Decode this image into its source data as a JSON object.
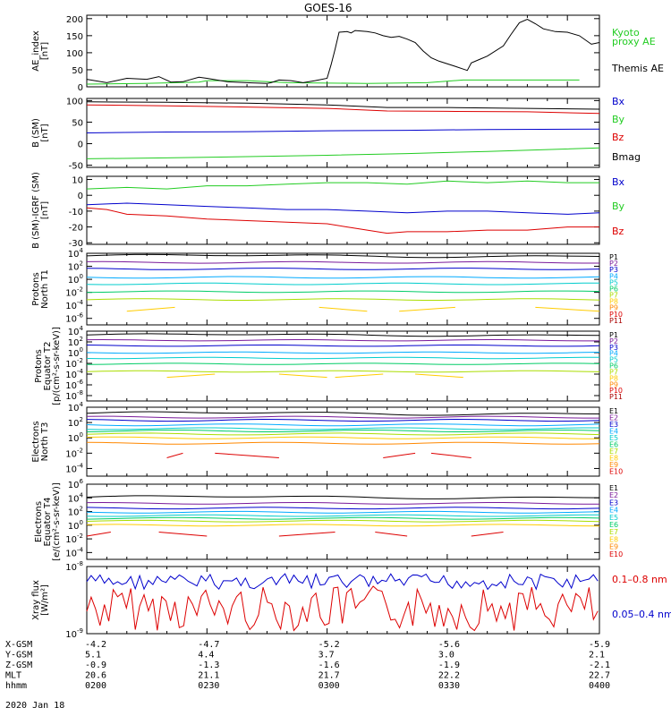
{
  "title": "GOES-16",
  "date": "2020 Jan 18",
  "colors": {
    "black": "#000000",
    "red": "#dd0000",
    "green": "#22cc22",
    "blue": "#0000cc"
  },
  "chart_data": [
    {
      "type": "line",
      "id": "ae",
      "ylabel": [
        "AE_index",
        "[nT]"
      ],
      "ylim": [
        0,
        210
      ],
      "yticks": [
        0,
        50,
        100,
        150,
        200
      ],
      "legend": [
        {
          "text": "Kyoto",
          "color": "#22cc22"
        },
        {
          "text": "proxy AE",
          "color": "#22cc22"
        },
        {
          "text": "Themis AE",
          "color": "#000000"
        }
      ],
      "series": [
        {
          "name": "Kyoto proxy AE",
          "color": "#22cc22",
          "values": [
            [
              0,
              8
            ],
            [
              14,
              10
            ],
            [
              28,
              14
            ],
            [
              30,
              18
            ],
            [
              40,
              18
            ],
            [
              50,
              12
            ],
            [
              70,
              10
            ],
            [
              85,
              12
            ],
            [
              94,
              20
            ],
            [
              112,
              20
            ],
            [
              120,
              20
            ],
            [
              123,
              20
            ]
          ]
        },
        {
          "name": "Themis AE",
          "color": "#000000",
          "values": [
            [
              0,
              22
            ],
            [
              5,
              12
            ],
            [
              10,
              25
            ],
            [
              15,
              22
            ],
            [
              18,
              30
            ],
            [
              21,
              14
            ],
            [
              24,
              15
            ],
            [
              28,
              28
            ],
            [
              30,
              25
            ],
            [
              35,
              15
            ],
            [
              40,
              12
            ],
            [
              45,
              10
            ],
            [
              46,
              12
            ],
            [
              48,
              20
            ],
            [
              51,
              18
            ],
            [
              54,
              12
            ],
            [
              57,
              18
            ],
            [
              60,
              25
            ],
            [
              61,
              65
            ],
            [
              62,
              110
            ],
            [
              63,
              160
            ],
            [
              65,
              162
            ],
            [
              66,
              158
            ],
            [
              67,
              165
            ],
            [
              70,
              162
            ],
            [
              72,
              158
            ],
            [
              74,
              150
            ],
            [
              76,
              145
            ],
            [
              78,
              148
            ],
            [
              80,
              140
            ],
            [
              82,
              130
            ],
            [
              84,
              105
            ],
            [
              86,
              85
            ],
            [
              88,
              75
            ],
            [
              92,
              60
            ],
            [
              94,
              52
            ],
            [
              95,
              48
            ],
            [
              96,
              70
            ],
            [
              98,
              80
            ],
            [
              100,
              90
            ],
            [
              104,
              120
            ],
            [
              106,
              155
            ],
            [
              108,
              188
            ],
            [
              110,
              198
            ],
            [
              112,
              185
            ],
            [
              114,
              170
            ],
            [
              117,
              162
            ],
            [
              120,
              160
            ],
            [
              123,
              150
            ],
            [
              126,
              125
            ],
            [
              128,
              130
            ]
          ]
        }
      ]
    },
    {
      "type": "line",
      "id": "bsm",
      "ylabel": [
        "B (SM)",
        "[nT]"
      ],
      "ylim": [
        -55,
        105
      ],
      "yticks": [
        -50,
        0,
        50,
        100
      ],
      "legend": [
        {
          "text": "Bx",
          "color": "#0000cc"
        },
        {
          "text": "By",
          "color": "#22cc22"
        },
        {
          "text": "Bz",
          "color": "#dd0000"
        },
        {
          "text": "Bmag",
          "color": "#000000"
        }
      ],
      "series": [
        {
          "name": "Bmag",
          "color": "#000000",
          "values": [
            [
              0,
              97
            ],
            [
              20,
              96
            ],
            [
              40,
              94
            ],
            [
              60,
              90
            ],
            [
              75,
              84
            ],
            [
              90,
              84
            ],
            [
              110,
              82
            ],
            [
              128,
              80
            ]
          ]
        },
        {
          "name": "Bz",
          "color": "#dd0000",
          "values": [
            [
              0,
              90
            ],
            [
              20,
              88
            ],
            [
              40,
              85
            ],
            [
              60,
              82
            ],
            [
              75,
              76
            ],
            [
              90,
              75
            ],
            [
              110,
              74
            ],
            [
              128,
              70
            ]
          ]
        },
        {
          "name": "Bx",
          "color": "#0000cc",
          "values": [
            [
              0,
              25
            ],
            [
              20,
              27
            ],
            [
              40,
              28
            ],
            [
              60,
              30
            ],
            [
              80,
              31
            ],
            [
              100,
              33
            ],
            [
              128,
              34
            ]
          ]
        },
        {
          "name": "By",
          "color": "#22cc22",
          "values": [
            [
              0,
              -35
            ],
            [
              20,
              -33
            ],
            [
              40,
              -30
            ],
            [
              60,
              -27
            ],
            [
              80,
              -23
            ],
            [
              100,
              -18
            ],
            [
              128,
              -10
            ]
          ]
        }
      ]
    },
    {
      "type": "line",
      "id": "bigrf",
      "ylabel": [
        "B (SM)-IGRF (SM)",
        "[nT]"
      ],
      "ylim": [
        -31,
        12
      ],
      "yticks": [
        -30,
        -20,
        -10,
        0,
        10
      ],
      "legend": [
        {
          "text": "Bx",
          "color": "#0000cc"
        },
        {
          "text": "By",
          "color": "#22cc22"
        },
        {
          "text": "Bz",
          "color": "#dd0000"
        }
      ],
      "series": [
        {
          "name": "By",
          "color": "#22cc22",
          "values": [
            [
              0,
              4
            ],
            [
              10,
              5
            ],
            [
              20,
              4
            ],
            [
              30,
              6
            ],
            [
              40,
              6
            ],
            [
              50,
              7
            ],
            [
              60,
              8
            ],
            [
              70,
              8
            ],
            [
              80,
              7
            ],
            [
              90,
              9
            ],
            [
              100,
              8
            ],
            [
              110,
              9
            ],
            [
              120,
              8
            ],
            [
              128,
              8
            ]
          ]
        },
        {
          "name": "Bx",
          "color": "#0000cc",
          "values": [
            [
              0,
              -6
            ],
            [
              10,
              -5
            ],
            [
              20,
              -6
            ],
            [
              30,
              -7
            ],
            [
              40,
              -8
            ],
            [
              50,
              -9
            ],
            [
              60,
              -9
            ],
            [
              70,
              -10
            ],
            [
              80,
              -11
            ],
            [
              90,
              -10
            ],
            [
              100,
              -10
            ],
            [
              110,
              -11
            ],
            [
              120,
              -12
            ],
            [
              128,
              -11
            ]
          ]
        },
        {
          "name": "Bz",
          "color": "#dd0000",
          "values": [
            [
              0,
              -8
            ],
            [
              5,
              -9
            ],
            [
              10,
              -12
            ],
            [
              20,
              -13
            ],
            [
              30,
              -15
            ],
            [
              40,
              -16
            ],
            [
              50,
              -17
            ],
            [
              60,
              -18
            ],
            [
              65,
              -20
            ],
            [
              70,
              -22
            ],
            [
              75,
              -24
            ],
            [
              80,
              -23
            ],
            [
              90,
              -23
            ],
            [
              100,
              -22
            ],
            [
              110,
              -22
            ],
            [
              120,
              -20
            ],
            [
              128,
              -20
            ]
          ]
        }
      ]
    },
    {
      "type": "line",
      "id": "pnt1",
      "yscale": "log",
      "ylabel": [
        "Protons",
        "North T1"
      ],
      "ylim": [
        -7,
        4
      ],
      "yticks": [
        -6,
        -4,
        -2,
        0,
        2,
        4
      ],
      "legend": [
        {
          "text": "P1",
          "color": "#000000"
        },
        {
          "text": "P2",
          "color": "#7a1a9a"
        },
        {
          "text": "P3",
          "color": "#0000cc"
        },
        {
          "text": "P4",
          "color": "#00aaff"
        },
        {
          "text": "P5",
          "color": "#00cccc"
        },
        {
          "text": "P6",
          "color": "#00cc66"
        },
        {
          "text": "P7",
          "color": "#aadd00"
        },
        {
          "text": "P8",
          "color": "#ffcc00"
        },
        {
          "text": "P9",
          "color": "#ff8800"
        },
        {
          "text": "P10",
          "color": "#dd0000"
        },
        {
          "text": "P11",
          "color": "#aa0000"
        }
      ],
      "levels": [
        3.6,
        2.6,
        1.6,
        0.3,
        -0.7,
        -1.9,
        -3.1
      ],
      "sparse": [
        {
          "color": "#ffcc00",
          "y": -4.6,
          "segs": [
            [
              10,
              22
            ],
            [
              58,
              70
            ],
            [
              78,
              92
            ],
            [
              112,
              128
            ]
          ]
        }
      ]
    },
    {
      "type": "line",
      "id": "peqt2",
      "yscale": "log",
      "ylabel": [
        "Protons",
        "Equator T2",
        "[p/(cm²-s-sr-keV)]"
      ],
      "ylim": [
        -9,
        4
      ],
      "yticks": [
        -8,
        -6,
        -4,
        -2,
        0,
        2,
        4
      ],
      "legend": [
        {
          "text": "P1",
          "color": "#000000"
        },
        {
          "text": "P2",
          "color": "#7a1a9a"
        },
        {
          "text": "P3",
          "color": "#0000cc"
        },
        {
          "text": "P4",
          "color": "#00aaff"
        },
        {
          "text": "P5",
          "color": "#00cccc"
        },
        {
          "text": "P6",
          "color": "#00cc66"
        },
        {
          "text": "P7",
          "color": "#aadd00"
        },
        {
          "text": "P8",
          "color": "#ffcc00"
        },
        {
          "text": "P9",
          "color": "#ff8800"
        },
        {
          "text": "P10",
          "color": "#dd0000"
        },
        {
          "text": "P11",
          "color": "#aa0000"
        }
      ],
      "levels": [
        3.3,
        2.3,
        1.3,
        0.0,
        -1.0,
        -2.1,
        -3.5
      ],
      "sparse": [
        {
          "color": "#ffcc00",
          "y": -4.3,
          "segs": [
            [
              20,
              32
            ],
            [
              48,
              60
            ],
            [
              62,
              74
            ],
            [
              82,
              94
            ]
          ]
        }
      ]
    },
    {
      "type": "line",
      "id": "ent3",
      "yscale": "log",
      "ylabel": [
        "Electrons",
        "North T3"
      ],
      "ylim": [
        -5,
        4
      ],
      "yticks": [
        -4,
        -2,
        0,
        2,
        4
      ],
      "legend": [
        {
          "text": "E1",
          "color": "#000000"
        },
        {
          "text": "E2",
          "color": "#7a1a9a"
        },
        {
          "text": "E3",
          "color": "#0000cc"
        },
        {
          "text": "E4",
          "color": "#00aaff"
        },
        {
          "text": "E5",
          "color": "#00cccc"
        },
        {
          "text": "E6",
          "color": "#00cc66"
        },
        {
          "text": "E7",
          "color": "#aadd00"
        },
        {
          "text": "E8",
          "color": "#ffcc00"
        },
        {
          "text": "E9",
          "color": "#ff8800"
        },
        {
          "text": "E10",
          "color": "#dd0000"
        }
      ],
      "levels": [
        3.2,
        2.7,
        2.3,
        1.7,
        1.2,
        0.9,
        0.5,
        0.0,
        -0.7
      ],
      "sparse": [
        {
          "color": "#dd0000",
          "y": -2.3,
          "segs": [
            [
              20,
              24
            ],
            [
              32,
              48
            ],
            [
              74,
              82
            ],
            [
              86,
              96
            ]
          ]
        }
      ]
    },
    {
      "type": "line",
      "id": "eeqt4",
      "yscale": "log",
      "ylabel": [
        "Electrons",
        "Equator T4",
        "[e/(cm²-s-sr-keV)]"
      ],
      "ylim": [
        -5,
        6
      ],
      "yticks": [
        -4,
        -2,
        0,
        2,
        4,
        6
      ],
      "legend": [
        {
          "text": "E1",
          "color": "#000000"
        },
        {
          "text": "E2",
          "color": "#7a1a9a"
        },
        {
          "text": "E3",
          "color": "#0000cc"
        },
        {
          "text": "E4",
          "color": "#00aaff"
        },
        {
          "text": "E5",
          "color": "#00cccc"
        },
        {
          "text": "E6",
          "color": "#00cc66"
        },
        {
          "text": "E7",
          "color": "#aadd00"
        },
        {
          "text": "E8",
          "color": "#ffcc00"
        },
        {
          "text": "E9",
          "color": "#ff8800"
        },
        {
          "text": "E10",
          "color": "#dd0000"
        }
      ],
      "levels": [
        4.1,
        3.2,
        2.5,
        1.9,
        1.4,
        1.0,
        0.6,
        0.0
      ],
      "sparse": [
        {
          "color": "#dd0000",
          "y": -1.3,
          "segs": [
            [
              0,
              6
            ],
            [
              18,
              30
            ],
            [
              48,
              62
            ],
            [
              72,
              80
            ],
            [
              96,
              104
            ]
          ]
        }
      ]
    },
    {
      "type": "line",
      "id": "xray",
      "yscale": "log",
      "ylabel": [
        "Xray flux",
        "[W/m²]"
      ],
      "ylim": [
        -9,
        -8
      ],
      "yticks": [
        -9,
        -8
      ],
      "legend": [
        {
          "text": "0.1–0.8 nm",
          "color": "#dd0000"
        },
        {
          "text": "0.05–0.4 nm",
          "color": "#0000cc"
        }
      ]
    }
  ],
  "footer": {
    "rows": [
      {
        "label": "X-GSM",
        "values": [
          "-4.2",
          "-4.7",
          "-5.2",
          "-5.6",
          "-5.9"
        ]
      },
      {
        "label": "Y-GSM",
        "values": [
          "5.1",
          "4.4",
          "3.7",
          "3.0",
          "2.1"
        ]
      },
      {
        "label": "Z-GSM",
        "values": [
          "-0.9",
          "-1.3",
          "-1.6",
          "-1.9",
          "-2.1"
        ]
      },
      {
        "label": "MLT",
        "values": [
          "20.6",
          "21.1",
          "21.7",
          "22.2",
          "22.7"
        ]
      },
      {
        "label": "hhmm",
        "values": [
          "0200",
          "0230",
          "0300",
          "0330",
          "0400"
        ]
      }
    ]
  }
}
